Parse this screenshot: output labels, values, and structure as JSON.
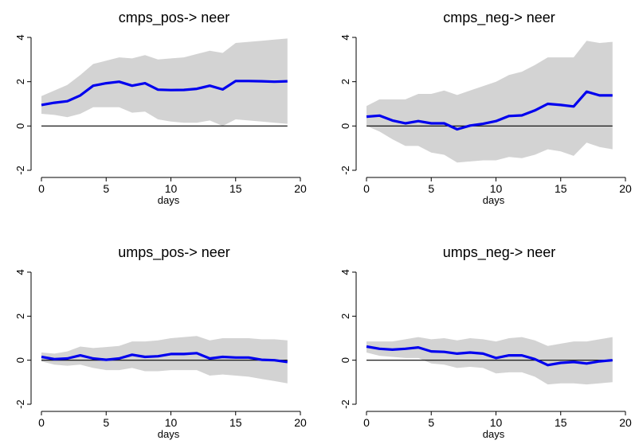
{
  "colors": {
    "band": "#d3d3d3",
    "line": "#0000ee",
    "zero": "#000000"
  },
  "chart_data": [
    {
      "type": "line",
      "title": "cmps_pos-> neer",
      "xlabel": "days",
      "ylabel": "",
      "xlim": [
        0,
        20
      ],
      "ylim": [
        -2,
        4
      ],
      "xticks": [
        0,
        5,
        10,
        15,
        20
      ],
      "yticks": [
        -2,
        0,
        2,
        4
      ],
      "x": [
        0,
        1,
        2,
        3,
        4,
        5,
        6,
        7,
        8,
        9,
        10,
        11,
        12,
        13,
        14,
        15,
        16,
        17,
        18,
        19
      ],
      "series": [
        {
          "values": [
            0.95,
            1.05,
            1.12,
            1.38,
            1.82,
            1.93,
            2.0,
            1.82,
            1.93,
            1.64,
            1.62,
            1.63,
            1.68,
            1.82,
            1.65,
            2.03,
            2.03,
            2.02,
            2.0,
            2.02
          ]
        }
      ],
      "band_upper": [
        1.35,
        1.6,
        1.85,
        2.3,
        2.8,
        2.95,
        3.1,
        3.05,
        3.2,
        3.0,
        3.05,
        3.1,
        3.25,
        3.4,
        3.3,
        3.75,
        3.8,
        3.85,
        3.9,
        3.95
      ],
      "band_lower": [
        0.55,
        0.5,
        0.4,
        0.55,
        0.85,
        0.85,
        0.85,
        0.6,
        0.65,
        0.3,
        0.2,
        0.15,
        0.15,
        0.25,
        0.0,
        0.3,
        0.25,
        0.2,
        0.15,
        0.1
      ]
    },
    {
      "type": "line",
      "title": "cmps_neg-> neer",
      "xlabel": "days",
      "ylabel": "",
      "xlim": [
        0,
        20
      ],
      "ylim": [
        -2,
        4
      ],
      "xticks": [
        0,
        5,
        10,
        15,
        20
      ],
      "yticks": [
        -2,
        0,
        2,
        4
      ],
      "x": [
        0,
        1,
        2,
        3,
        4,
        5,
        6,
        7,
        8,
        9,
        10,
        11,
        12,
        13,
        14,
        15,
        16,
        17,
        18,
        19
      ],
      "series": [
        {
          "values": [
            0.42,
            0.47,
            0.25,
            0.12,
            0.22,
            0.12,
            0.12,
            -0.15,
            0.02,
            0.1,
            0.22,
            0.45,
            0.48,
            0.7,
            1.0,
            0.95,
            0.88,
            1.55,
            1.38,
            1.38
          ]
        }
      ],
      "band_upper": [
        0.9,
        1.2,
        1.2,
        1.2,
        1.45,
        1.45,
        1.6,
        1.4,
        1.6,
        1.8,
        2.0,
        2.3,
        2.45,
        2.75,
        3.1,
        3.1,
        3.1,
        3.85,
        3.75,
        3.8
      ],
      "band_lower": [
        0.0,
        -0.25,
        -0.6,
        -0.9,
        -0.9,
        -1.2,
        -1.3,
        -1.65,
        -1.6,
        -1.55,
        -1.55,
        -1.4,
        -1.45,
        -1.3,
        -1.05,
        -1.15,
        -1.35,
        -0.75,
        -0.95,
        -1.05
      ]
    },
    {
      "type": "line",
      "title": "umps_pos-> neer",
      "xlabel": "days",
      "ylabel": "",
      "xlim": [
        0,
        20
      ],
      "ylim": [
        -2,
        4
      ],
      "xticks": [
        0,
        5,
        10,
        15,
        20
      ],
      "yticks": [
        -2,
        0,
        2,
        4
      ],
      "x": [
        0,
        1,
        2,
        3,
        4,
        5,
        6,
        7,
        8,
        9,
        10,
        11,
        12,
        13,
        14,
        15,
        16,
        17,
        18,
        19
      ],
      "series": [
        {
          "values": [
            0.15,
            0.05,
            0.08,
            0.22,
            0.08,
            0.02,
            0.08,
            0.25,
            0.15,
            0.18,
            0.28,
            0.28,
            0.32,
            0.08,
            0.15,
            0.12,
            0.12,
            0.02,
            0.0,
            -0.08
          ]
        }
      ],
      "band_upper": [
        0.35,
        0.3,
        0.4,
        0.62,
        0.55,
        0.6,
        0.65,
        0.85,
        0.85,
        0.9,
        1.0,
        1.05,
        1.1,
        0.9,
        1.0,
        1.0,
        1.0,
        0.95,
        0.95,
        0.9
      ],
      "band_lower": [
        -0.05,
        -0.2,
        -0.25,
        -0.2,
        -0.35,
        -0.45,
        -0.45,
        -0.35,
        -0.5,
        -0.5,
        -0.45,
        -0.45,
        -0.45,
        -0.7,
        -0.65,
        -0.7,
        -0.75,
        -0.85,
        -0.95,
        -1.05
      ]
    },
    {
      "type": "line",
      "title": "umps_neg-> neer",
      "xlabel": "days",
      "ylabel": "",
      "xlim": [
        0,
        20
      ],
      "ylim": [
        -2,
        4
      ],
      "xticks": [
        0,
        5,
        10,
        15,
        20
      ],
      "yticks": [
        -2,
        0,
        2,
        4
      ],
      "x": [
        0,
        1,
        2,
        3,
        4,
        5,
        6,
        7,
        8,
        9,
        10,
        11,
        12,
        13,
        14,
        15,
        16,
        17,
        18,
        19
      ],
      "series": [
        {
          "values": [
            0.62,
            0.52,
            0.48,
            0.52,
            0.58,
            0.4,
            0.38,
            0.3,
            0.35,
            0.3,
            0.1,
            0.22,
            0.22,
            0.05,
            -0.22,
            -0.12,
            -0.08,
            -0.15,
            -0.05,
            0.0
          ]
        }
      ],
      "band_upper": [
        0.85,
        0.85,
        0.85,
        0.95,
        1.05,
        0.95,
        1.0,
        0.9,
        1.0,
        0.95,
        0.85,
        1.0,
        1.05,
        0.9,
        0.65,
        0.75,
        0.85,
        0.85,
        0.95,
        1.05
      ],
      "band_lower": [
        0.35,
        0.2,
        0.15,
        0.1,
        0.1,
        -0.15,
        -0.2,
        -0.35,
        -0.3,
        -0.35,
        -0.6,
        -0.55,
        -0.55,
        -0.75,
        -1.1,
        -1.05,
        -1.05,
        -1.1,
        -1.05,
        -1.0
      ]
    }
  ]
}
